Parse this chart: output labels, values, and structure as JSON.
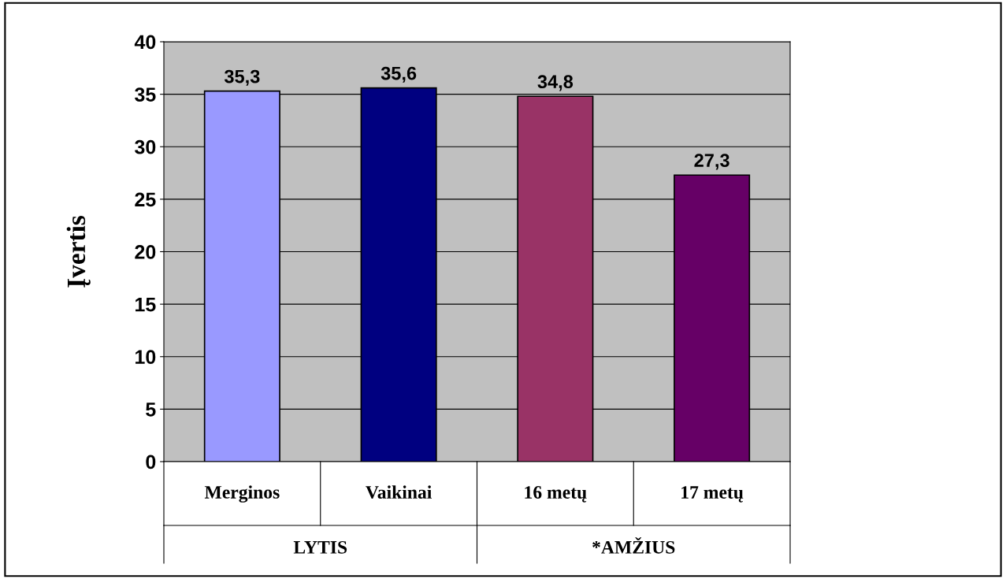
{
  "chart_data": {
    "type": "bar",
    "ylabel": "Įvertis",
    "categories": [
      "Merginos",
      "Vaikinai",
      "16 metų",
      "17 metų"
    ],
    "values": [
      35.3,
      35.6,
      34.8,
      27.3
    ],
    "colors": [
      "#9999ff",
      "#000080",
      "#993366",
      "#660066"
    ],
    "value_labels": [
      "35,3",
      "35,6",
      "34,8",
      "27,3"
    ],
    "annotations": [
      "LYTIS",
      "*AMŽIUS"
    ],
    "ylim": [
      0,
      40
    ],
    "yticks": [
      0,
      5,
      10,
      15,
      20,
      25,
      30,
      35,
      40
    ],
    "grid": "y",
    "legend": false
  }
}
